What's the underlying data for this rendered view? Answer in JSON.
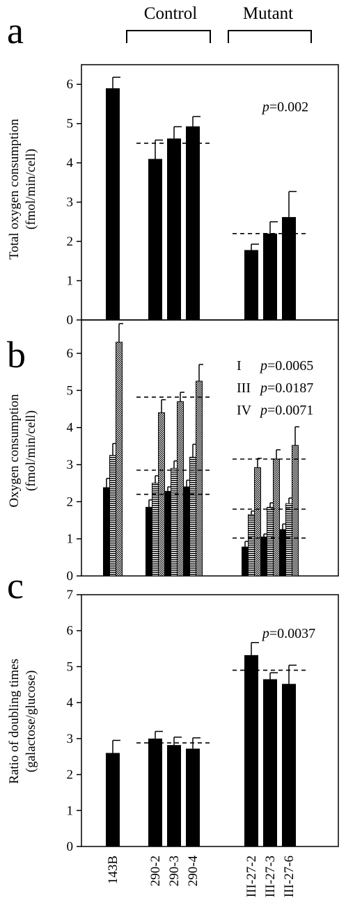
{
  "figure": {
    "group_labels": {
      "control": "Control",
      "mutant": "Mutant"
    },
    "categories": [
      "143B",
      "290-2",
      "290-3",
      "290-4",
      "III-27-2",
      "III-27-3",
      "III-27-6"
    ]
  },
  "chart_data": [
    {
      "panel": "a",
      "type": "bar",
      "ylabel_line1": "Total oxygen consumption",
      "ylabel_line2": "(fmol/min/cell)",
      "ylim": [
        0,
        6.5
      ],
      "yticks": [
        0,
        1,
        2,
        3,
        4,
        5,
        6
      ],
      "categories": [
        "143B",
        "290-2",
        "290-3",
        "290-4",
        "III-27-2",
        "III-27-3",
        "III-27-6"
      ],
      "values": [
        5.9,
        4.1,
        4.62,
        4.93,
        1.78,
        2.2,
        2.62
      ],
      "errors": [
        0.28,
        0.48,
        0.3,
        0.25,
        0.15,
        0.3,
        0.65
      ],
      "annotation_italic": "p",
      "annotation_rest": "=0.002",
      "group_means": [
        {
          "categories": [
            "290-2",
            "290-3",
            "290-4"
          ],
          "value": 4.5
        },
        {
          "categories": [
            "III-27-2",
            "III-27-3",
            "III-27-6"
          ],
          "value": 2.2
        }
      ]
    },
    {
      "panel": "b",
      "type": "bar",
      "ylabel_line1": "Oxygen consumption",
      "ylabel_line2": "(fmol/min/cell)",
      "ylim": [
        0,
        6.9
      ],
      "yticks": [
        0,
        1,
        2,
        3,
        4,
        5,
        6
      ],
      "categories": [
        "143B",
        "290-2",
        "290-3",
        "290-4",
        "III-27-2",
        "III-27-3",
        "III-27-6"
      ],
      "series": [
        {
          "key": "I",
          "values": [
            2.38,
            1.85,
            2.28,
            2.4,
            0.78,
            1.05,
            1.25
          ],
          "errors": [
            0.25,
            0.2,
            0.12,
            0.18,
            0.15,
            0.08,
            0.15
          ]
        },
        {
          "key": "III",
          "values": [
            3.25,
            2.5,
            2.9,
            3.2,
            1.65,
            1.85,
            1.95
          ],
          "errors": [
            0.32,
            0.2,
            0.2,
            0.35,
            0.1,
            0.12,
            0.15
          ]
        },
        {
          "key": "IV",
          "values": [
            6.3,
            4.4,
            4.7,
            5.25,
            2.92,
            3.15,
            3.52
          ],
          "errors": [
            0.5,
            0.35,
            0.25,
            0.45,
            0.25,
            0.25,
            0.5
          ]
        }
      ],
      "annotations": [
        {
          "prefix": "I",
          "italic": "p",
          "rest": "=0.0065"
        },
        {
          "prefix": "III",
          "italic": "p",
          "rest": "=0.0187"
        },
        {
          "prefix": "IV",
          "italic": "p",
          "rest": "=0.0071"
        }
      ],
      "group_means": [
        {
          "categories": [
            "290-2",
            "290-3",
            "290-4"
          ],
          "series": "I",
          "value": 2.2
        },
        {
          "categories": [
            "290-2",
            "290-3",
            "290-4"
          ],
          "series": "III",
          "value": 2.85
        },
        {
          "categories": [
            "290-2",
            "290-3",
            "290-4"
          ],
          "series": "IV",
          "value": 4.82
        },
        {
          "categories": [
            "III-27-2",
            "III-27-3",
            "III-27-6"
          ],
          "series": "I",
          "value": 1.02
        },
        {
          "categories": [
            "III-27-2",
            "III-27-3",
            "III-27-6"
          ],
          "series": "III",
          "value": 1.8
        },
        {
          "categories": [
            "III-27-2",
            "III-27-3",
            "III-27-6"
          ],
          "series": "IV",
          "value": 3.15
        }
      ]
    },
    {
      "panel": "c",
      "type": "bar",
      "ylabel_line1": "Ratio of doubling times",
      "ylabel_line2": "(galactose/glucose)",
      "ylim": [
        0,
        7
      ],
      "yticks": [
        0,
        1,
        2,
        3,
        4,
        5,
        6,
        7
      ],
      "categories": [
        "143B",
        "290-2",
        "290-3",
        "290-4",
        "III-27-2",
        "III-27-3",
        "III-27-6"
      ],
      "values": [
        2.6,
        3.0,
        2.82,
        2.72,
        5.32,
        4.65,
        4.52
      ],
      "errors": [
        0.35,
        0.2,
        0.22,
        0.3,
        0.35,
        0.18,
        0.52
      ],
      "annotation_italic": "p",
      "annotation_rest": "=0.0037",
      "group_means": [
        {
          "categories": [
            "290-2",
            "290-3",
            "290-4"
          ],
          "value": 2.88
        },
        {
          "categories": [
            "III-27-2",
            "III-27-3",
            "III-27-6"
          ],
          "value": 4.9
        }
      ]
    }
  ]
}
